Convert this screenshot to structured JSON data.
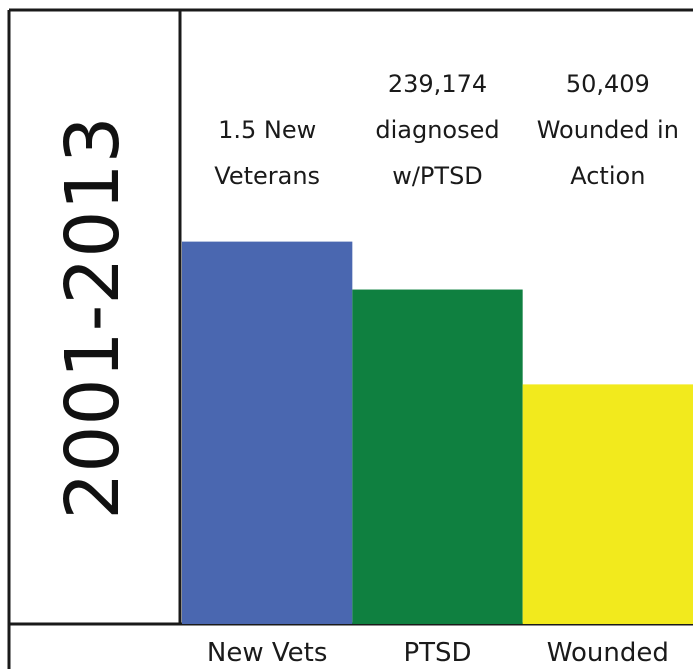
{
  "chart_data": {
    "type": "bar",
    "period_label": "2001-2013",
    "categories": [
      "New Vets",
      "PTSD",
      "Wounded"
    ],
    "values": [
      383,
      335,
      240
    ],
    "ylim": [
      0,
      625
    ],
    "bar_labels": [
      [
        "1.5 New",
        "Veterans"
      ],
      [
        "239,174",
        "diagnosed",
        "w/PTSD"
      ],
      [
        "50,409",
        "Wounded in",
        "Action"
      ]
    ],
    "colors": [
      "#4a67b0",
      "#0f8040",
      "#f2ea1d"
    ],
    "legend": "none",
    "grid": false
  }
}
